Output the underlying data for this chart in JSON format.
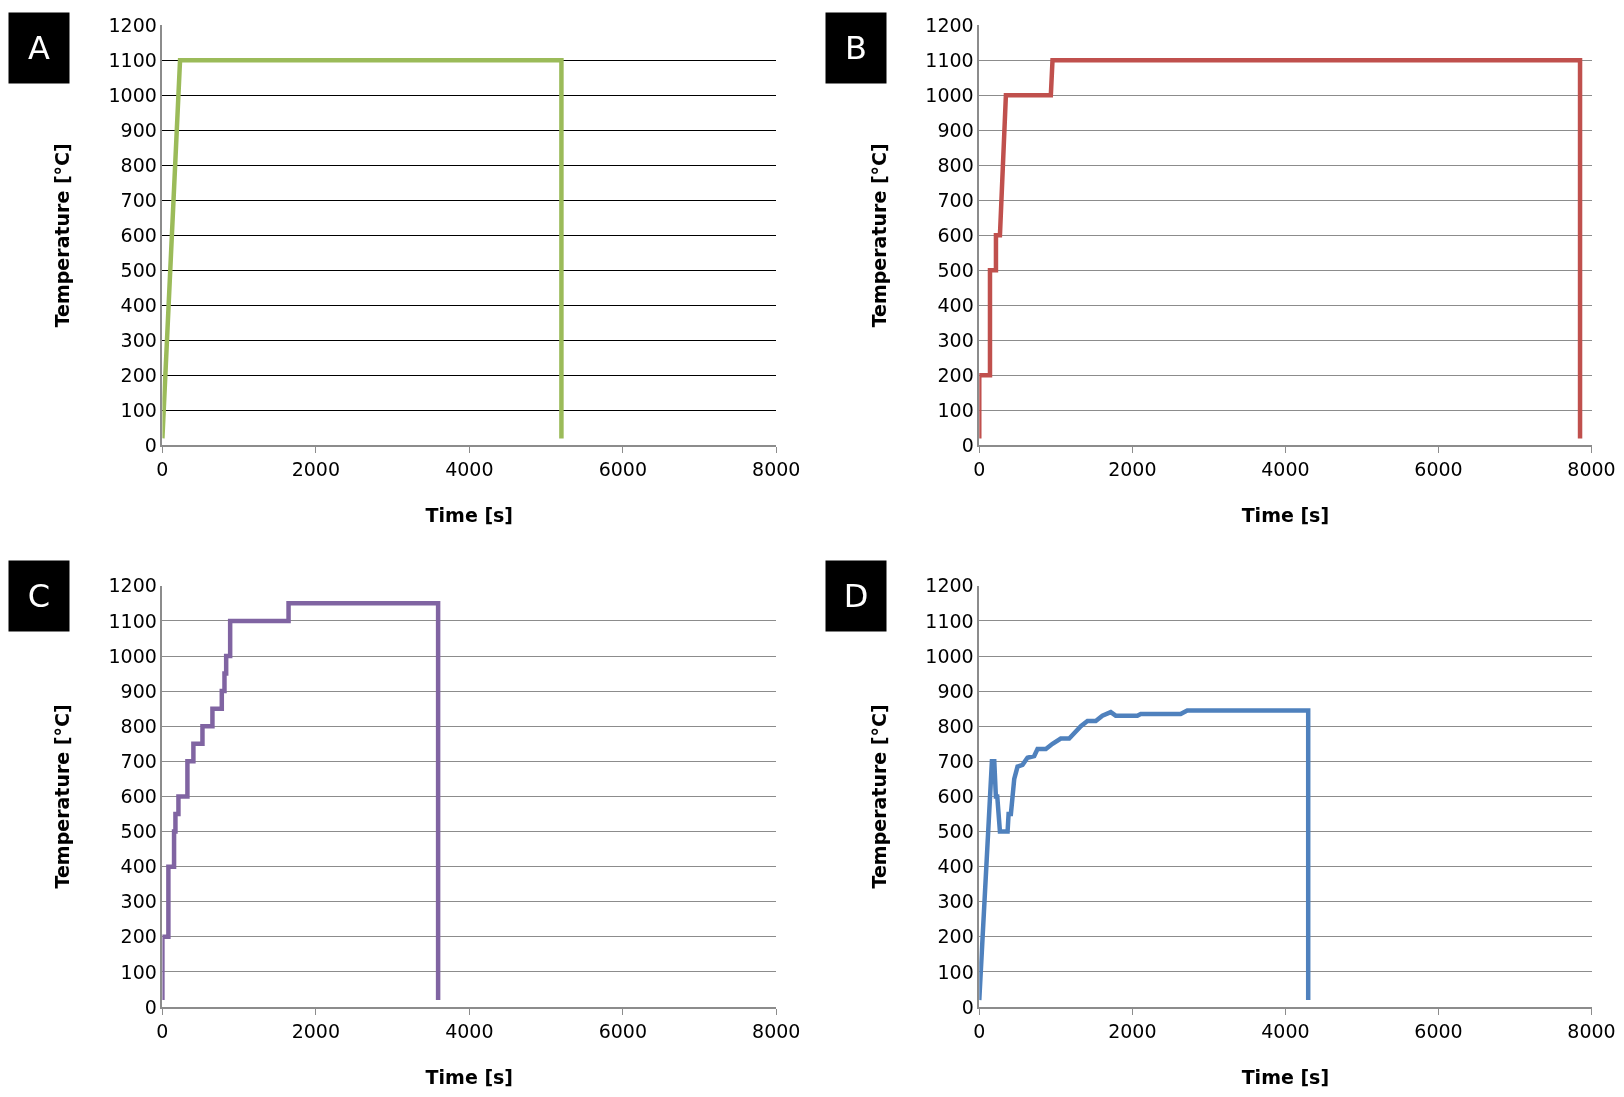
{
  "chart_data": [
    {
      "type": "line",
      "xlabel": "Time [s]",
      "ylabel": "Temperature [°C]",
      "annotations": [
        "A"
      ],
      "xlim": [
        0,
        8000
      ],
      "xticks": [
        0,
        2000,
        4000,
        6000,
        8000
      ],
      "ylim": [
        0,
        1200
      ],
      "yticks": [
        0,
        100,
        200,
        300,
        400,
        500,
        600,
        700,
        800,
        900,
        1000,
        1100,
        1200
      ],
      "grid": "y",
      "marker": "none",
      "line_style": "solid",
      "series": [
        {
          "color": "#9bbb59",
          "x": [
            0,
            230,
            5200,
            5200
          ],
          "values": [
            20,
            1100,
            1100,
            20
          ]
        }
      ]
    },
    {
      "type": "line",
      "xlabel": "Time [s]",
      "ylabel": "Temperature [°C]",
      "annotations": [
        "B"
      ],
      "xlim": [
        0,
        8000
      ],
      "xticks": [
        0,
        2000,
        4000,
        6000,
        8000
      ],
      "ylim": [
        0,
        1200
      ],
      "yticks": [
        0,
        100,
        200,
        300,
        400,
        500,
        600,
        700,
        800,
        900,
        1000,
        1100,
        1200
      ],
      "grid": "y",
      "marker": "none",
      "line_style": "solid",
      "series": [
        {
          "color": "#c0504d",
          "x": [
            0,
            0,
            140,
            140,
            218,
            218,
            270,
            348,
            935,
            957,
            7850,
            7850
          ],
          "values": [
            20,
            200,
            200,
            500,
            500,
            600,
            600,
            1000,
            1000,
            1100,
            1100,
            20
          ]
        }
      ]
    },
    {
      "type": "line",
      "xlabel": "Time [s]",
      "ylabel": "Temperature [°C]",
      "annotations": [
        "C"
      ],
      "xlim": [
        0,
        8000
      ],
      "xticks": [
        0,
        2000,
        4000,
        6000,
        8000
      ],
      "ylim": [
        0,
        1200
      ],
      "yticks": [
        0,
        100,
        200,
        300,
        400,
        500,
        600,
        700,
        800,
        900,
        1000,
        1100,
        1200
      ],
      "grid": "y",
      "marker": "none",
      "line_style": "solid",
      "series": [
        {
          "color": "#8064a2",
          "x": [
            0,
            0,
            78,
            78,
            152,
            152,
            170,
            170,
            209,
            209,
            326,
            326,
            404,
            404,
            522,
            522,
            652,
            652,
            774,
            774,
            809,
            809,
            831,
            831,
            883,
            883,
            1644,
            1644,
            3593,
            3593
          ],
          "values": [
            20,
            200,
            200,
            400,
            400,
            500,
            500,
            550,
            550,
            600,
            600,
            700,
            700,
            750,
            750,
            800,
            800,
            850,
            850,
            900,
            900,
            950,
            950,
            1000,
            1000,
            1100,
            1100,
            1150,
            1150,
            20
          ]
        }
      ]
    },
    {
      "type": "line",
      "xlabel": "Time [s]",
      "ylabel": "Temperature [°C]",
      "annotations": [
        "D"
      ],
      "xlim": [
        0,
        8000
      ],
      "xticks": [
        0,
        2000,
        4000,
        6000,
        8000
      ],
      "ylim": [
        0,
        1200
      ],
      "yticks": [
        0,
        100,
        200,
        300,
        400,
        500,
        600,
        700,
        800,
        900,
        1000,
        1100,
        1200
      ],
      "grid": "y",
      "marker": "none",
      "line_style": "solid",
      "series": [
        {
          "color": "#4f81bd",
          "x": [
            0,
            165,
            196,
            217,
            235,
            270,
            370,
            383,
            413,
            435,
            457,
            500,
            565,
            630,
            718,
            761,
            870,
            957,
            1065,
            1175,
            1327,
            1414,
            1522,
            1609,
            1718,
            1783,
            2066,
            2110,
            2631,
            2718,
            4298,
            4298
          ],
          "values": [
            20,
            700,
            700,
            600,
            600,
            500,
            500,
            550,
            550,
            600,
            650,
            685,
            690,
            710,
            715,
            735,
            735,
            750,
            765,
            765,
            800,
            815,
            815,
            830,
            840,
            830,
            830,
            835,
            835,
            845,
            845,
            20
          ]
        }
      ]
    }
  ]
}
